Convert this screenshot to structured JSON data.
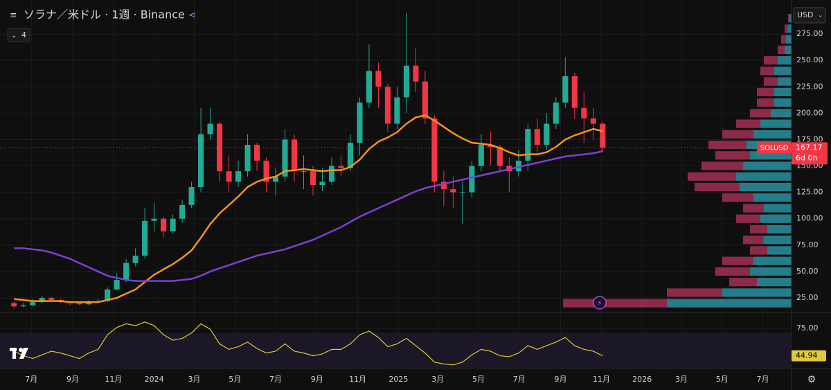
{
  "chart_data": {
    "type": "candlestick",
    "title": "ソラナ／米ドル · 1週 · Binance",
    "indicator_count": "4",
    "currency": "USD",
    "symbol_tag": "SOLUSD",
    "countdown": "6d 0h",
    "x": [
      "2023-06-05",
      "2023-06-19",
      "2023-07-03",
      "2023-07-17",
      "2023-07-31",
      "2023-08-14",
      "2023-08-28",
      "2023-09-11",
      "2023-09-25",
      "2023-10-09",
      "2023-10-23",
      "2023-11-06",
      "2023-11-20",
      "2023-12-04",
      "2023-12-18",
      "2024-01-01",
      "2024-01-15",
      "2024-01-29",
      "2024-02-12",
      "2024-02-26",
      "2024-03-11",
      "2024-03-25",
      "2024-04-08",
      "2024-04-22",
      "2024-05-06",
      "2024-05-20",
      "2024-06-03",
      "2024-06-17",
      "2024-07-01",
      "2024-07-15",
      "2024-07-29",
      "2024-08-12",
      "2024-08-26",
      "2024-09-09",
      "2024-09-23",
      "2024-10-07",
      "2024-10-21",
      "2024-11-04",
      "2024-11-18",
      "2024-12-02",
      "2024-12-16",
      "2024-12-30",
      "2025-01-13",
      "2025-01-27",
      "2025-02-10",
      "2025-02-24",
      "2025-03-10",
      "2025-03-24",
      "2025-04-07",
      "2025-04-21",
      "2025-05-05",
      "2025-05-19",
      "2025-06-02",
      "2025-06-16",
      "2025-06-30",
      "2025-07-14",
      "2025-07-28",
      "2025-08-11",
      "2025-08-25",
      "2025-09-08",
      "2025-09-22",
      "2025-10-06",
      "2025-10-20",
      "2025-11-03"
    ],
    "open": [
      20,
      17,
      18,
      21,
      25,
      23,
      21,
      20,
      19,
      21,
      22,
      33,
      42,
      58,
      65,
      98,
      100,
      88,
      100,
      113,
      130,
      180,
      190,
      145,
      135,
      145,
      170,
      155,
      135,
      140,
      175,
      145,
      145,
      132,
      135,
      150,
      148,
      172,
      210,
      240,
      225,
      190,
      215,
      245,
      230,
      195,
      135,
      128,
      125,
      125,
      150,
      170,
      168,
      150,
      145,
      155,
      185,
      170,
      190,
      210,
      235,
      205,
      195,
      190
    ],
    "high": [
      22,
      20,
      24,
      27,
      26,
      24,
      22,
      21,
      23,
      24,
      35,
      48,
      62,
      72,
      110,
      115,
      102,
      104,
      118,
      135,
      205,
      205,
      192,
      160,
      155,
      180,
      172,
      158,
      148,
      185,
      180,
      160,
      150,
      148,
      158,
      160,
      180,
      215,
      265,
      248,
      228,
      225,
      295,
      262,
      240,
      198,
      145,
      140,
      135,
      155,
      180,
      182,
      170,
      158,
      165,
      190,
      195,
      200,
      215,
      253,
      238,
      220,
      205,
      192
    ],
    "low": [
      15,
      16,
      17,
      20,
      21,
      20,
      18,
      18,
      18,
      20,
      21,
      32,
      40,
      55,
      62,
      88,
      82,
      86,
      96,
      110,
      125,
      175,
      135,
      125,
      130,
      140,
      145,
      125,
      122,
      135,
      135,
      128,
      122,
      126,
      132,
      140,
      145,
      160,
      205,
      205,
      182,
      185,
      200,
      220,
      190,
      125,
      112,
      110,
      95,
      120,
      145,
      150,
      145,
      125,
      140,
      145,
      160,
      165,
      185,
      205,
      195,
      172,
      175,
      163
    ],
    "close": [
      17,
      18,
      21,
      25,
      23,
      21,
      20,
      19,
      21,
      22,
      33,
      42,
      58,
      65,
      98,
      100,
      88,
      100,
      113,
      130,
      180,
      190,
      145,
      135,
      145,
      170,
      155,
      135,
      140,
      175,
      145,
      145,
      132,
      135,
      150,
      148,
      172,
      210,
      240,
      225,
      190,
      215,
      245,
      230,
      195,
      135,
      128,
      125,
      125,
      150,
      170,
      168,
      150,
      145,
      155,
      185,
      170,
      190,
      210,
      235,
      205,
      195,
      190,
      167.17
    ],
    "up_color": "#22ab94",
    "down_color": "#f23645",
    "series": [
      {
        "color": "#f7931a",
        "values": [
          24,
          23,
          22,
          22,
          22,
          22,
          21,
          21,
          21,
          21,
          23,
          25,
          29,
          33,
          40,
          47,
          52,
          57,
          63,
          70,
          82,
          95,
          105,
          113,
          121,
          130,
          135,
          138,
          140,
          145,
          146,
          147,
          146,
          145,
          146,
          146,
          149,
          156,
          166,
          173,
          177,
          182,
          190,
          196,
          198,
          193,
          187,
          181,
          176,
          172,
          171,
          170,
          167,
          163,
          160,
          161,
          161,
          163,
          168,
          175,
          179,
          182,
          185,
          183
        ]
      },
      {
        "color": "#7e3fd6",
        "values": [
          72,
          72,
          71,
          70,
          68,
          65,
          62,
          58,
          54,
          50,
          46,
          44,
          42,
          41,
          41,
          41,
          41,
          41,
          42,
          43,
          46,
          50,
          53,
          56,
          59,
          62,
          65,
          67,
          69,
          71,
          74,
          77,
          80,
          84,
          88,
          92,
          97,
          102,
          106,
          110,
          114,
          118,
          122,
          126,
          129,
          131,
          133,
          135,
          137,
          139,
          141,
          143,
          145,
          147,
          149,
          151,
          153,
          155,
          157,
          159,
          160,
          161,
          162,
          164
        ]
      }
    ],
    "xlim": [
      "2023-05-15",
      "2026-08-13"
    ],
    "xticks": [
      {
        "value": "2023-07-01",
        "label": "7月"
      },
      {
        "value": "2023-09-01",
        "label": "9月"
      },
      {
        "value": "2023-11-01",
        "label": "11月"
      },
      {
        "value": "2024-01-01",
        "label": "2024"
      },
      {
        "value": "2024-03-01",
        "label": "3月"
      },
      {
        "value": "2024-05-01",
        "label": "5月"
      },
      {
        "value": "2024-07-01",
        "label": "7月"
      },
      {
        "value": "2024-09-01",
        "label": "9月"
      },
      {
        "value": "2024-11-01",
        "label": "11月"
      },
      {
        "value": "2025-01-01",
        "label": "2025"
      },
      {
        "value": "2025-03-01",
        "label": "3月"
      },
      {
        "value": "2025-05-01",
        "label": "5月"
      },
      {
        "value": "2025-07-01",
        "label": "7月"
      },
      {
        "value": "2025-09-01",
        "label": "9月"
      },
      {
        "value": "2025-11-01",
        "label": "11月"
      },
      {
        "value": "2026-01-01",
        "label": "2026"
      },
      {
        "value": "2026-03-01",
        "label": "3月"
      },
      {
        "value": "2026-05-01",
        "label": "5月"
      },
      {
        "value": "2026-07-01",
        "label": "7月"
      }
    ],
    "ylim": [
      11.9,
      307.2
    ],
    "yticks": [
      {
        "value": 25,
        "label": "25.00"
      },
      {
        "value": 50,
        "label": "50.00"
      },
      {
        "value": 75,
        "label": "75.00"
      },
      {
        "value": 100,
        "label": "100.00"
      },
      {
        "value": 125,
        "label": "125.00"
      },
      {
        "value": 150,
        "label": "150.00"
      },
      {
        "value": 175,
        "label": "175.00"
      },
      {
        "value": 200,
        "label": "200.00"
      },
      {
        "value": 225,
        "label": "225.00"
      },
      {
        "value": 250,
        "label": "250.00"
      },
      {
        "value": 275,
        "label": "275.00"
      }
    ],
    "grid": true,
    "volume_profile": {
      "prices": [
        20,
        30,
        40,
        50,
        60,
        70,
        80,
        90,
        100,
        110,
        120,
        130,
        140,
        150,
        160,
        170,
        180,
        190,
        200,
        210,
        220,
        230,
        240,
        250,
        260,
        270,
        280,
        290
      ],
      "up": [
        180,
        100,
        50,
        60,
        55,
        35,
        40,
        35,
        45,
        40,
        55,
        75,
        80,
        70,
        60,
        65,
        55,
        45,
        30,
        25,
        25,
        20,
        25,
        20,
        10,
        8,
        5,
        3
      ],
      "down": [
        150,
        80,
        40,
        50,
        45,
        25,
        30,
        25,
        35,
        30,
        45,
        65,
        70,
        60,
        50,
        55,
        45,
        35,
        30,
        25,
        25,
        20,
        20,
        20,
        10,
        7,
        5,
        2
      ],
      "up_color": "#2fa3b4",
      "down_color": "#b8345f"
    },
    "rsi": {
      "color": "#e0c93a",
      "band": [
        30,
        70
      ],
      "ylim": [
        31.8,
        91.7
      ],
      "yticks": [
        {
          "value": 75,
          "label": "75.00"
        }
      ],
      "values": [
        50,
        45,
        42,
        46,
        50,
        48,
        45,
        42,
        48,
        52,
        68,
        76,
        80,
        78,
        82,
        78,
        68,
        62,
        64,
        70,
        80,
        74,
        58,
        52,
        55,
        60,
        53,
        48,
        50,
        58,
        50,
        48,
        45,
        47,
        52,
        52,
        58,
        68,
        72,
        65,
        55,
        58,
        64,
        56,
        48,
        38,
        36,
        35,
        38,
        46,
        52,
        50,
        45,
        44,
        48,
        56,
        52,
        56,
        60,
        65,
        56,
        52,
        50,
        44.94
      ]
    }
  }
}
